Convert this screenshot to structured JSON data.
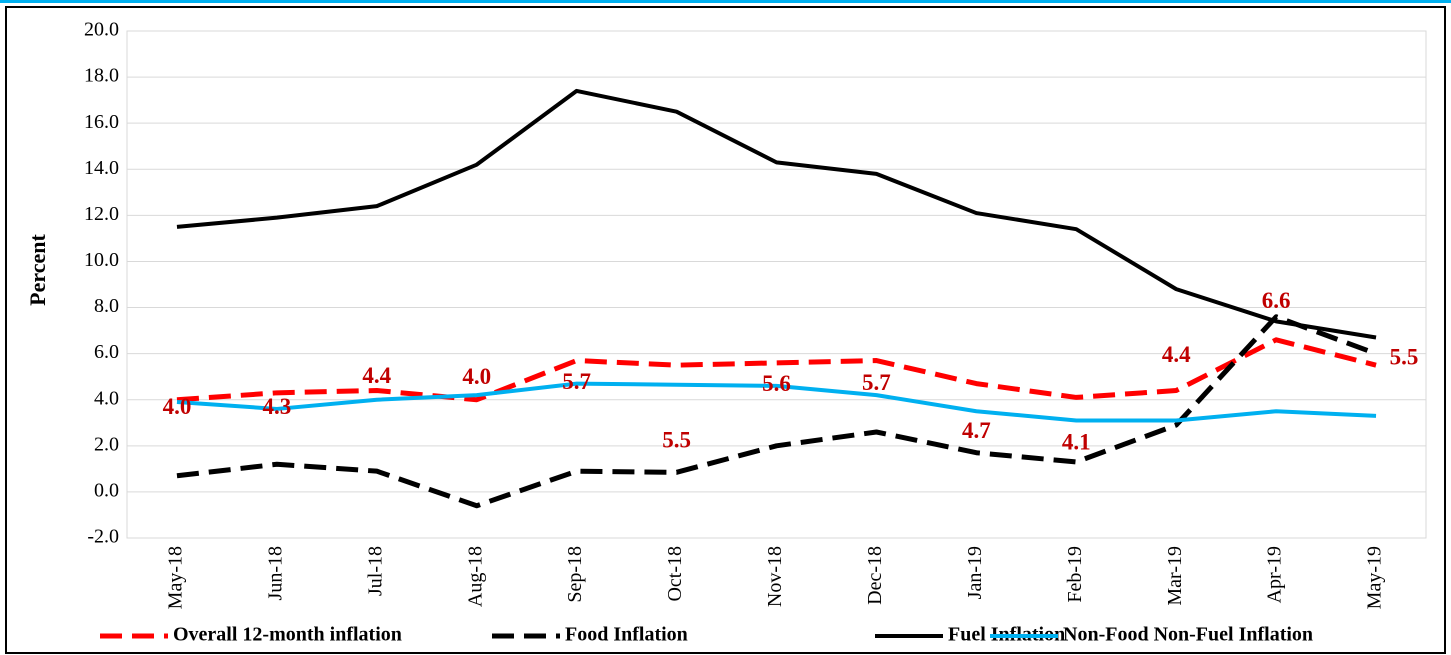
{
  "chart_data": {
    "type": "line",
    "y_label": "Percent",
    "categories": [
      "May-18",
      "Jun-18",
      "Jul-18",
      "Aug-18",
      "Sep-18",
      "Oct-18",
      "Nov-18",
      "Dec-18",
      "Jan-19",
      "Feb-19",
      "Mar-19",
      "Apr-19",
      "May-19"
    ],
    "ylim": [
      -2,
      20
    ],
    "yticks": [
      {
        "value": -2,
        "label": "-2.0"
      },
      {
        "value": 0,
        "label": "0.0"
      },
      {
        "value": 2,
        "label": "2.0"
      },
      {
        "value": 4,
        "label": "4.0"
      },
      {
        "value": 6,
        "label": "6.0"
      },
      {
        "value": 8,
        "label": "8.0"
      },
      {
        "value": 10,
        "label": "10.0"
      },
      {
        "value": 12,
        "label": "12.0"
      },
      {
        "value": 14,
        "label": "14.0"
      },
      {
        "value": 16,
        "label": "16.0"
      },
      {
        "value": 18,
        "label": "18.0"
      },
      {
        "value": 20,
        "label": "20.0"
      }
    ],
    "grid": true,
    "legend": "bottom",
    "series": [
      {
        "name": "Overall 12-month inflation",
        "color": "#ff0000",
        "dash": "dashed",
        "values": [
          4.0,
          4.3,
          4.4,
          4.0,
          5.7,
          5.5,
          5.6,
          5.7,
          4.7,
          4.1,
          4.4,
          6.6,
          5.5
        ],
        "value_labels": [
          "4.0",
          "4.3",
          "4.4",
          "4.0",
          "5.7",
          "5.5",
          "5.6",
          "5.7",
          "4.7",
          "4.1",
          "4.4",
          "6.6",
          "5.5"
        ]
      },
      {
        "name": "Food Inflation",
        "color": "#000000",
        "dash": "dashed",
        "values": [
          0.7,
          1.2,
          0.9,
          -0.6,
          0.9,
          0.85,
          2.0,
          2.6,
          1.7,
          1.3,
          2.9,
          7.6,
          6.0
        ]
      },
      {
        "name": "Fuel Inflation",
        "color": "#000000",
        "dash": "solid",
        "values": [
          11.5,
          11.9,
          12.4,
          14.2,
          17.4,
          16.5,
          14.3,
          13.8,
          12.1,
          11.4,
          8.8,
          7.4,
          6.7
        ]
      },
      {
        "name": "Non-Food Non-Fuel Inflation",
        "color": "#00b0f0",
        "dash": "solid",
        "values": [
          3.9,
          3.6,
          4.0,
          4.2,
          4.7,
          4.65,
          4.6,
          4.2,
          3.5,
          3.1,
          3.1,
          3.5,
          3.3
        ]
      }
    ]
  }
}
